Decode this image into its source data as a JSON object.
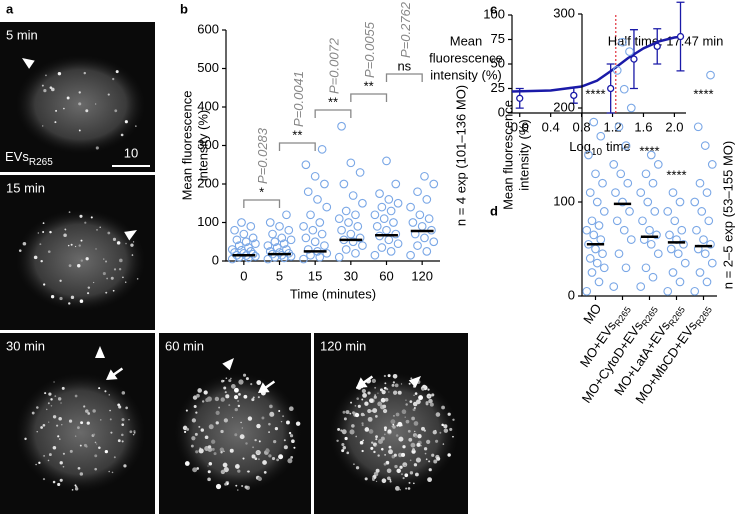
{
  "panel_a": {
    "letter": "a",
    "images": [
      {
        "label": "5 min"
      },
      {
        "label": "15 min"
      },
      {
        "label": "30 min"
      },
      {
        "label": "60 min"
      },
      {
        "label": "120 min"
      }
    ],
    "evs_label": [
      "EVs",
      "R265"
    ],
    "scale_bar": "10"
  },
  "chart_data": [
    {
      "type": "scatter-median",
      "letter": "b",
      "ylabel": [
        "Mean fluorescence",
        "intensity (%)"
      ],
      "xlabel": "Time (minutes)",
      "side_note": "n = 4 exp (101–136 MO)",
      "categories": [
        "0",
        "5",
        "15",
        "30",
        "60",
        "120"
      ],
      "values": [
        15,
        18,
        25,
        55,
        67,
        78
      ],
      "points": [
        [
          5,
          8,
          10,
          12,
          14,
          15,
          18,
          20,
          22,
          25,
          28,
          30,
          35,
          40,
          45,
          50,
          55,
          60,
          70,
          80,
          90,
          100
        ],
        [
          5,
          8,
          10,
          12,
          15,
          18,
          20,
          22,
          25,
          30,
          35,
          40,
          45,
          50,
          55,
          60,
          70,
          80,
          90,
          100,
          120
        ],
        [
          5,
          10,
          15,
          20,
          25,
          30,
          40,
          50,
          60,
          70,
          80,
          90,
          100,
          120,
          140,
          160,
          180,
          200,
          220,
          250,
          290
        ],
        [
          10,
          20,
          30,
          40,
          50,
          55,
          60,
          70,
          80,
          90,
          100,
          110,
          120,
          130,
          150,
          170,
          200,
          230,
          255,
          350
        ],
        [
          15,
          25,
          35,
          45,
          55,
          65,
          70,
          80,
          90,
          100,
          110,
          120,
          130,
          140,
          150,
          160,
          175,
          200,
          260
        ],
        [
          15,
          25,
          40,
          50,
          60,
          70,
          80,
          90,
          100,
          110,
          120,
          140,
          160,
          180,
          200,
          220
        ]
      ],
      "color": "#7aa7e6",
      "median_color": "#000000",
      "ylim": [
        0,
        600
      ],
      "yticks": [
        0,
        100,
        200,
        300,
        400,
        500,
        600
      ],
      "comparisons": [
        {
          "label": "*",
          "p": "P=0.0283"
        },
        {
          "label": "**",
          "p": "P=0.0041"
        },
        {
          "label": "**",
          "p": "P=0.0072"
        },
        {
          "label": "**",
          "p": "P=0.0055"
        },
        {
          "label": "ns",
          "p": "P=0.2762"
        }
      ]
    },
    {
      "type": "errorbar-fit",
      "letter": "c",
      "ylabel": [
        "Mean",
        "fluorescence",
        "intensity (%)"
      ],
      "xlabel": [
        "Log",
        "10",
        "time"
      ],
      "x": [
        0,
        0.699,
        1.176,
        1.477,
        1.778,
        2.079
      ],
      "values": [
        15,
        18,
        25,
        55,
        68,
        78
      ],
      "errors": [
        10,
        8,
        25,
        30,
        18,
        35
      ],
      "fit": {
        "x": [
          -0.1,
          0.4,
          0.8,
          1.0,
          1.2,
          1.4,
          1.6,
          1.8,
          2.0,
          2.1
        ],
        "y": [
          22,
          23,
          27,
          33,
          44,
          56,
          66,
          73,
          77,
          78
        ]
      },
      "color": "#1a1aa8",
      "half_time": {
        "x": 1.242,
        "label": "Half time: 17.47 min",
        "color": "#e0303a"
      },
      "xlim": [
        -0.1,
        2.15
      ],
      "xticks": [
        {
          "value": 0,
          "label": "0.0"
        },
        {
          "value": 0.4,
          "label": "0.4"
        },
        {
          "value": 0.8,
          "label": "0.8"
        },
        {
          "value": 1.2,
          "label": "1.2"
        },
        {
          "value": 1.6,
          "label": "1.6"
        },
        {
          "value": 2.0,
          "label": "2.0"
        }
      ],
      "ylim": [
        0,
        100
      ],
      "yticks": [
        0,
        25,
        50,
        75,
        100
      ]
    },
    {
      "type": "scatter-median",
      "letter": "d",
      "ylabel": [
        "Mean fluorescence",
        "intensity (%)"
      ],
      "side_note": "n = 2–5 exp (53–155 MO)",
      "categories": [
        [
          "MO"
        ],
        [
          "MO+EVs",
          "R265"
        ],
        [
          "MO+CytoD+EVs",
          "R265"
        ],
        [
          "MO+LatA+EVs",
          "R265"
        ],
        [
          "MO+MbCD+EVs",
          "R265"
        ]
      ],
      "values": [
        55,
        98,
        63,
        57,
        53
      ],
      "points": [
        [
          5,
          15,
          25,
          30,
          35,
          40,
          45,
          50,
          55,
          60,
          65,
          70,
          75,
          80,
          90,
          100,
          110,
          120,
          130,
          150,
          170,
          185
        ],
        [
          10,
          30,
          45,
          60,
          70,
          80,
          90,
          100,
          110,
          120,
          130,
          140,
          160,
          180,
          200,
          220,
          240,
          260,
          270
        ],
        [
          10,
          20,
          30,
          45,
          55,
          60,
          65,
          70,
          80,
          90,
          100,
          110,
          120,
          130,
          140,
          150
        ],
        [
          5,
          15,
          25,
          35,
          45,
          50,
          55,
          60,
          65,
          70,
          80,
          90,
          100,
          110
        ],
        [
          5,
          15,
          25,
          35,
          45,
          50,
          55,
          60,
          70,
          80,
          90,
          100,
          110,
          120,
          140,
          160,
          180,
          235
        ]
      ],
      "significance": [
        "****",
        null,
        "****",
        "****",
        "****"
      ],
      "color": "#7aa7e6",
      "median_color": "#000000",
      "ylim": [
        0,
        300
      ],
      "yticks": [
        0,
        100,
        200,
        300
      ]
    }
  ]
}
